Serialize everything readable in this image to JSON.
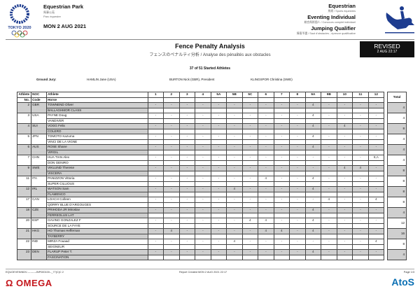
{
  "header": {
    "venue": "Equestrian Park",
    "venue_jp": "馬事公苑",
    "venue_fr": "Parc équestre",
    "date": "MON 2 AUG 2021",
    "emblem_text": "TOKYO 2020",
    "sport": "Equestrian",
    "sport_sub": "馬術 / Sports équestres",
    "event": "Eventing Individual",
    "event_sub": "総合馬術個人 / Concours complet individuel",
    "phase": "Jumping Qualifier",
    "phase_sub": "障害予選 / Saut d'obstacles - épreuve qualificative",
    "pictogram": "equestrian-eventing-pictogram"
  },
  "report": {
    "title": "Fence Penalty Analysis",
    "subtitle": "フェンスのペナルティ分析 / Analyse des pénalités aux obstacles",
    "revised_label": "REVISED",
    "revised_time": "2 AUG 22:17",
    "started": "37 of 51 Started Athletes",
    "jury_label": "Ground Jury:",
    "jury": [
      "HAMLIN Jane (USA)",
      "BURTON Nick (GBR), President",
      "KLINGSPOR Christina (SWE)"
    ]
  },
  "table": {
    "headers": {
      "no1": "Athlete",
      "no2": "No.",
      "noc1": "NOC",
      "noc2": "Code",
      "ath1": "Athlete",
      "ath2": "Horse",
      "total": "Total"
    },
    "obstacles": [
      "1",
      "2",
      "3",
      "4",
      "5A",
      "5B",
      "5C",
      "6",
      "7",
      "8",
      "9A",
      "9B",
      "10",
      "11",
      "12"
    ],
    "rows": [
      {
        "no": "2",
        "noc": "GBR",
        "athlete": "TOWNEND Oliver",
        "horse": "BALLAGHMOR CLASS",
        "pen": [
          "-",
          "-",
          "-",
          "-",
          "-",
          "-",
          "-",
          "-",
          "-",
          "-",
          "4",
          "-",
          "-",
          "-",
          "-"
        ],
        "total": "4"
      },
      {
        "no": "3",
        "noc": "USA",
        "athlete": "PAYNE Doug",
        "horse": "VANDIVER",
        "pen": [
          "-",
          "-",
          "-",
          "-",
          "-",
          "-",
          "-",
          "-",
          "-",
          "-",
          "4",
          "-",
          "-",
          "-",
          "-"
        ],
        "total": "4"
      },
      {
        "no": "4",
        "noc": "SUI",
        "athlete": "VOGG Felix",
        "horse": "COLERO",
        "pen": [
          "-",
          "-",
          "-",
          "-",
          "-",
          "-",
          "-",
          "-",
          "-",
          "-",
          "4",
          "-",
          "4",
          "-",
          "-"
        ],
        "total": "8"
      },
      {
        "no": "5",
        "noc": "JPN",
        "athlete": "TOMOTO Kazuma",
        "horse": "VINCI DE LA VIGNE",
        "pen": [
          "-",
          "-",
          "-",
          "-",
          "-",
          "-",
          "-",
          "-",
          "-",
          "-",
          "4",
          "-",
          "-",
          "-",
          "-"
        ],
        "total": "4"
      },
      {
        "no": "6",
        "noc": "AUS",
        "athlete": "ROSE Shane",
        "horse": "VIRGIL",
        "pen": [
          "-",
          "-",
          "-",
          "-",
          "-",
          "-",
          "-",
          "-",
          "-",
          "-",
          "4",
          "-",
          "-",
          "-",
          "-"
        ],
        "total": "4"
      },
      {
        "no": "7",
        "noc": "CHN",
        "athlete": "HUA TIAN Alex",
        "horse": "DON GENIRO",
        "pen": [
          "-",
          "-",
          "-",
          "-",
          "-",
          "-",
          "-",
          "-",
          "-",
          "-",
          "-",
          "-",
          "-",
          "-",
          "8,A"
        ],
        "total": "4"
      },
      {
        "no": "9",
        "noc": "SWE",
        "athlete": "VIKLUND Therese",
        "horse": "VISCERA",
        "pen": [
          "-",
          "-",
          "-",
          "-",
          "-",
          "-",
          "-",
          "-",
          "-",
          "-",
          "-",
          "-",
          "4",
          "4",
          "-"
        ],
        "total": "8"
      },
      {
        "no": "11",
        "noc": "ITA",
        "athlete": "PANIZZON Vittoria",
        "horse": "SUPER CILLIOUS",
        "pen": [
          "-",
          "-",
          "-",
          "-",
          "-",
          "-",
          "-",
          "4",
          "-",
          "-",
          "4",
          "-",
          "-",
          "-",
          "-"
        ],
        "total": "8"
      },
      {
        "no": "12",
        "noc": "IRL",
        "athlete": "WATSON Sam",
        "horse": "FLAMENCO",
        "pen": [
          "-",
          "-",
          "-",
          "-",
          "-",
          "4",
          "-",
          "-",
          "-",
          "-",
          "4",
          "-",
          "-",
          "-",
          "-"
        ],
        "total": "8"
      },
      {
        "no": "17",
        "noc": "CAN",
        "athlete": "LOACH Colleen",
        "horse": "QORRY BLUE D'ARGOUGES",
        "pen": [
          "-",
          "-",
          "-",
          "-",
          "-",
          "-",
          "-",
          "-",
          "-",
          "-",
          "-",
          "4",
          "-",
          "-",
          "4"
        ],
        "total": "8"
      },
      {
        "no": "18",
        "noc": "CZE",
        "athlete": "PRIHODA JR Miroslav",
        "horse": "FERREOLUS LAT",
        "pen": [
          "-",
          "-",
          "-",
          "-",
          "-",
          "-",
          "-",
          "-",
          "-",
          "-",
          "4",
          "-",
          "-",
          "-",
          "-"
        ],
        "total": "4"
      },
      {
        "no": "20",
        "noc": "ESP",
        "athlete": "GAVINO GONZALEZ F",
        "horse": "SOURCE DE LA FAYE",
        "pen": [
          "-",
          "-",
          "-",
          "-",
          "-",
          "-",
          "4",
          "4",
          "-",
          "-",
          "4",
          "-",
          "-",
          "-",
          "-"
        ],
        "total": "12"
      },
      {
        "no": "21",
        "noc": "HKG",
        "athlete": "HO Thomas Heffernan",
        "horse": "TAYBERRY",
        "pen": [
          "-",
          "4",
          "-",
          "-",
          "-",
          "-",
          "-",
          "4",
          "4",
          "-",
          "4",
          "-",
          "-",
          "-",
          "-"
        ],
        "total": "16"
      },
      {
        "no": "22",
        "noc": "IND",
        "athlete": "MIRZA Fouaad",
        "horse": "SEIGNEUR",
        "pen": [
          "-",
          "-",
          "-",
          "-",
          "-",
          "4",
          "-",
          "-",
          "-",
          "-",
          "-",
          "-",
          "-",
          "-",
          "4"
        ],
        "total": "8"
      },
      {
        "no": "23",
        "noc": "DEN",
        "athlete": "FLARUP Peter T.",
        "horse": "FASCINATION",
        "pen": [
          "-",
          "-",
          "-",
          "-",
          "-",
          "-",
          "-",
          "-",
          "-",
          "-",
          "4",
          "-",
          "-",
          "-",
          "-"
        ],
        "total": "4"
      }
    ]
  },
  "footer": {
    "code": "EQUOEVENINDV----------JNP000100--_77(C)C 2",
    "created": "Report Created  MON 2 AUG 2021 22:17",
    "page": "Page 1/3",
    "sponsor_left": "OMEGA",
    "sponsor_right": "AtoS"
  },
  "colors": {
    "shade": "#cfcfcf",
    "omega": "#c4161c",
    "atos": "#0a6fb3",
    "emblem": "#1d3c8f"
  }
}
